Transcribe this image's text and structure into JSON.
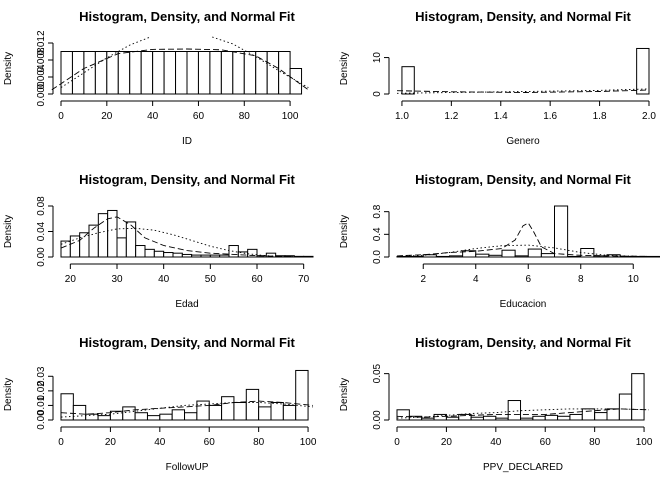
{
  "figure": {
    "colors": {
      "axis": "#000000",
      "bar_fill": "#ffffff",
      "bar_stroke": "#000000",
      "background": "#ffffff"
    }
  },
  "chart_data": [
    {
      "type": "bar",
      "title": "Histogram, Density, and Normal Fit",
      "xlabel": "ID",
      "ylabel": "Density",
      "xlim": [
        0,
        110
      ],
      "ylim": [
        0,
        0.012
      ],
      "xticks": [
        "0",
        "20",
        "40",
        "60",
        "80",
        "100"
      ],
      "yticks": [
        "0.000",
        "0.004",
        "0.008",
        "0.012"
      ],
      "bins": {
        "start": 0,
        "width": 5,
        "heights": [
          0.01,
          0.01,
          0.01,
          0.01,
          0.01,
          0.01,
          0.01,
          0.01,
          0.01,
          0.01,
          0.01,
          0.01,
          0.01,
          0.01,
          0.01,
          0.01,
          0.01,
          0.01,
          0.01,
          0.01,
          0.006
        ]
      },
      "series": [
        {
          "style": "dashed",
          "x": [
            -4,
            10,
            25,
            40,
            55,
            70,
            85,
            95,
            108
          ],
          "y": [
            0.001,
            0.006,
            0.0095,
            0.0105,
            0.0106,
            0.0104,
            0.009,
            0.006,
            0.001
          ]
        },
        {
          "style": "dotted",
          "x": [
            0,
            10,
            20,
            30,
            39
          ],
          "y": [
            0.0015,
            0.005,
            0.0085,
            0.0115,
            0.0134
          ]
        },
        {
          "style": "dotted",
          "x": [
            66,
            75,
            85,
            95,
            108
          ],
          "y": [
            0.0134,
            0.0118,
            0.0088,
            0.0055,
            0.0015
          ]
        }
      ]
    },
    {
      "type": "bar",
      "title": "Histogram, Density, and Normal Fit",
      "xlabel": "Genero",
      "ylabel": "Density",
      "xlim": [
        0.98,
        2.0
      ],
      "ylim": [
        0,
        14
      ],
      "xticks": [
        "1.0",
        "1.2",
        "1.4",
        "1.6",
        "1.8",
        "2.0"
      ],
      "yticks": [
        "0",
        "10"
      ],
      "bins": {
        "start": 1.0,
        "width": 0.05,
        "heights": [
          7.5,
          0,
          0,
          0,
          0,
          0,
          0,
          0,
          0,
          0,
          0,
          0,
          0,
          0,
          0,
          0,
          0,
          0,
          0,
          12.5
        ]
      },
      "series": [
        {
          "style": "dashed",
          "x": [
            0.98,
            1.2,
            1.5,
            1.8,
            2.0
          ],
          "y": [
            0.9,
            0.6,
            0.4,
            0.7,
            1.1
          ]
        },
        {
          "style": "dotted",
          "x": [
            0.98,
            1.2,
            1.5,
            1.8,
            2.0
          ],
          "y": [
            0.2,
            0.4,
            0.7,
            1.0,
            1.4
          ]
        }
      ]
    },
    {
      "type": "bar",
      "title": "Histogram, Density, and Normal Fit",
      "xlabel": "Edad",
      "ylabel": "Density",
      "xlim": [
        18,
        72
      ],
      "ylim": [
        0,
        0.08
      ],
      "xticks": [
        "20",
        "30",
        "40",
        "50",
        "60",
        "70"
      ],
      "yticks": [
        "0.00",
        "0.04",
        "0.08"
      ],
      "bins": {
        "start": 18,
        "width": 2,
        "heights": [
          0.025,
          0.033,
          0.038,
          0.05,
          0.068,
          0.073,
          0.03,
          0.055,
          0.018,
          0.012,
          0.009,
          0.007,
          0.006,
          0.004,
          0.003,
          0.003,
          0.003,
          0.003,
          0.018,
          0.008,
          0.012,
          0.002,
          0.006,
          0.002,
          0.002,
          0.001,
          0.001
        ]
      },
      "series": [
        {
          "style": "dashed",
          "x": [
            18,
            22,
            25,
            28,
            30,
            33,
            36,
            40,
            45,
            50,
            55,
            60,
            65,
            72
          ],
          "y": [
            0.014,
            0.026,
            0.045,
            0.06,
            0.063,
            0.05,
            0.03,
            0.018,
            0.01,
            0.006,
            0.004,
            0.002,
            0.001,
            0.0005
          ]
        },
        {
          "style": "dotted",
          "x": [
            18,
            22,
            26,
            30,
            34,
            38,
            42,
            46,
            50,
            54,
            58,
            62,
            66,
            72
          ],
          "y": [
            0.02,
            0.03,
            0.038,
            0.044,
            0.045,
            0.042,
            0.035,
            0.026,
            0.017,
            0.01,
            0.005,
            0.002,
            0.001,
            0.0002
          ]
        }
      ]
    },
    {
      "type": "bar",
      "title": "Histogram, Density, and Normal Fit",
      "xlabel": "Educacion",
      "ylabel": "Density",
      "xlim": [
        1,
        10.6
      ],
      "ylim": [
        0,
        0.9
      ],
      "xticks": [
        "2",
        "4",
        "6",
        "8",
        "10"
      ],
      "yticks": [
        "0.0",
        "0.4",
        "0.8"
      ],
      "bins": {
        "start": 1,
        "width": 0.5,
        "heights": [
          0.01,
          0.01,
          0.04,
          0.01,
          0.02,
          0.11,
          0.05,
          0.03,
          0.12,
          0.02,
          0.14,
          0.06,
          0.9,
          0.01,
          0.15,
          0.02,
          0.04,
          0.01,
          0.01,
          0.01
        ]
      },
      "series": [
        {
          "style": "dashed",
          "x": [
            1,
            2,
            3,
            4,
            5,
            5.5,
            5.8,
            6.0,
            6.2,
            6.5,
            7,
            8,
            9,
            10.6
          ],
          "y": [
            0.02,
            0.04,
            0.08,
            0.1,
            0.15,
            0.3,
            0.55,
            0.6,
            0.45,
            0.18,
            0.06,
            0.03,
            0.02,
            0.01
          ]
        },
        {
          "style": "dotted",
          "x": [
            1,
            2,
            3,
            4,
            5,
            6,
            7,
            8,
            9,
            10.6
          ],
          "y": [
            0.01,
            0.03,
            0.08,
            0.15,
            0.2,
            0.21,
            0.16,
            0.08,
            0.03,
            0.005
          ]
        }
      ]
    },
    {
      "type": "bar",
      "title": "Histogram, Density, and Normal Fit",
      "xlabel": "FollowUP",
      "ylabel": "Density",
      "xlim": [
        0,
        102
      ],
      "ylim": [
        0,
        0.035
      ],
      "xticks": [
        "0",
        "20",
        "40",
        "60",
        "80",
        "100"
      ],
      "yticks": [
        "0.00",
        "0.01",
        "0.02",
        "0.03"
      ],
      "bins": {
        "start": 0,
        "width": 5,
        "heights": [
          0.018,
          0.01,
          0.004,
          0.003,
          0.006,
          0.009,
          0.005,
          0.003,
          0.004,
          0.007,
          0.005,
          0.013,
          0.01,
          0.016,
          0.012,
          0.021,
          0.009,
          0.012,
          0.01,
          0.034
        ]
      },
      "series": [
        {
          "style": "dashed",
          "x": [
            0,
            10,
            20,
            30,
            40,
            50,
            60,
            70,
            80,
            90,
            102
          ],
          "y": [
            0.005,
            0.004,
            0.005,
            0.007,
            0.008,
            0.009,
            0.01,
            0.012,
            0.013,
            0.012,
            0.01
          ]
        },
        {
          "style": "dotted",
          "x": [
            0,
            10,
            20,
            30,
            40,
            50,
            60,
            70,
            80,
            90,
            102
          ],
          "y": [
            0.002,
            0.003,
            0.004,
            0.006,
            0.008,
            0.01,
            0.011,
            0.012,
            0.012,
            0.011,
            0.009
          ]
        }
      ]
    },
    {
      "type": "bar",
      "title": "Histogram, Density, and Normal Fit",
      "xlabel": "PPV_DECLARED",
      "ylabel": "Density",
      "xlim": [
        0,
        102
      ],
      "ylim": [
        0,
        0.055
      ],
      "xticks": [
        "0",
        "20",
        "40",
        "60",
        "80",
        "100"
      ],
      "yticks": [
        "0.00",
        "0.05"
      ],
      "bins": {
        "start": 0,
        "width": 5,
        "heights": [
          0.011,
          0.004,
          0.002,
          0.006,
          0.003,
          0.006,
          0.003,
          0.004,
          0.002,
          0.021,
          0.002,
          0.004,
          0.005,
          0.004,
          0.006,
          0.012,
          0.008,
          0.012,
          0.028,
          0.05
        ]
      },
      "series": [
        {
          "style": "dashed",
          "x": [
            0,
            10,
            20,
            30,
            40,
            50,
            60,
            70,
            80,
            90,
            102
          ],
          "y": [
            0.004,
            0.003,
            0.004,
            0.005,
            0.006,
            0.006,
            0.006,
            0.008,
            0.01,
            0.012,
            0.011
          ]
        },
        {
          "style": "dotted",
          "x": [
            0,
            10,
            20,
            30,
            40,
            50,
            60,
            70,
            80,
            90,
            102
          ],
          "y": [
            0.002,
            0.003,
            0.005,
            0.007,
            0.008,
            0.01,
            0.011,
            0.012,
            0.012,
            0.012,
            0.011
          ]
        }
      ]
    }
  ]
}
